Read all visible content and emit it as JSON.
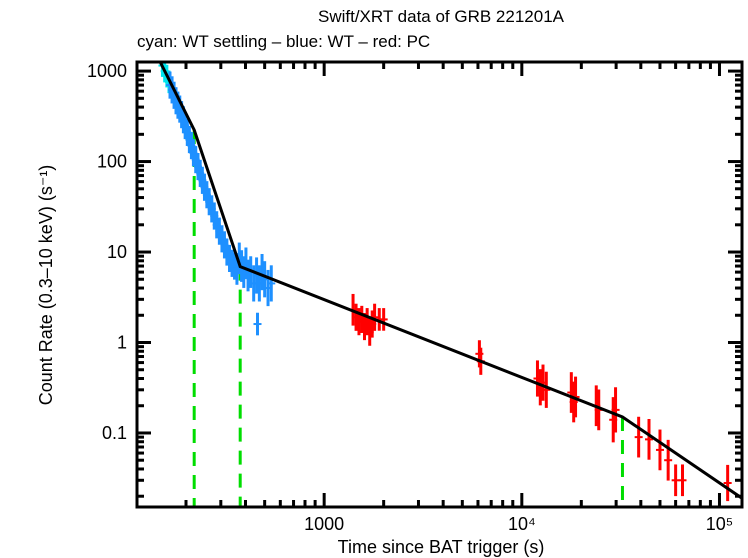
{
  "chart_data": {
    "type": "scatter",
    "title": "Swift/XRT data of GRB 221201A",
    "subtitle": "cyan: WT settling – blue: WT – red: PC",
    "xlabel": "Time since BAT trigger (s)",
    "ylabel": "Count Rate (0.3–10 keV) (s⁻¹)",
    "xscale": "log",
    "yscale": "log",
    "xlim": [
      113,
      130000
    ],
    "ylim": [
      0.0152,
      1260
    ],
    "xticks": [
      {
        "value": 1000,
        "label": "1000"
      },
      {
        "value": 10000,
        "label": "10⁴"
      },
      {
        "value": 100000,
        "label": "10⁵"
      }
    ],
    "yticks": [
      {
        "value": 0.1,
        "label": "0.1"
      },
      {
        "value": 1,
        "label": "1"
      },
      {
        "value": 10,
        "label": "10"
      },
      {
        "value": 100,
        "label": "100"
      },
      {
        "value": 1000,
        "label": "1000"
      }
    ],
    "colors": {
      "wt_settling": "#00e5ee",
      "wt": "#1e90ff",
      "pc": "#ff0000",
      "model": "#000000",
      "breaks": "#00dd00"
    },
    "series": [
      {
        "name": "WT settling",
        "color": "#00e5ee",
        "points": [
          [
            152,
            1150,
            0.25
          ],
          [
            156,
            1000,
            0.25
          ],
          [
            160,
            880,
            0.25
          ],
          [
            164,
            760,
            0.25
          ]
        ]
      },
      {
        "name": "WT",
        "color": "#1e90ff",
        "points": [
          [
            166,
            700,
            0.3
          ],
          [
            170,
            620,
            0.3
          ],
          [
            174,
            540,
            0.3
          ],
          [
            178,
            470,
            0.3
          ],
          [
            182,
            420,
            0.3
          ],
          [
            186,
            380,
            0.3
          ],
          [
            190,
            330,
            0.3
          ],
          [
            194,
            290,
            0.3
          ],
          [
            198,
            250,
            0.3
          ],
          [
            203,
            210,
            0.3
          ],
          [
            208,
            175,
            0.3
          ],
          [
            213,
            150,
            0.3
          ],
          [
            218,
            125,
            0.3
          ],
          [
            224,
            105,
            0.3
          ],
          [
            230,
            88,
            0.3
          ],
          [
            236,
            74,
            0.3
          ],
          [
            242,
            62,
            0.3
          ],
          [
            248,
            52,
            0.3
          ],
          [
            255,
            43,
            0.3
          ],
          [
            262,
            36,
            0.3
          ],
          [
            270,
            30,
            0.3
          ],
          [
            278,
            25,
            0.3
          ],
          [
            286,
            20,
            0.3
          ],
          [
            295,
            17,
            0.3
          ],
          [
            304,
            14,
            0.3
          ],
          [
            313,
            12,
            0.3
          ],
          [
            322,
            10,
            0.3
          ],
          [
            332,
            8.5,
            0.3
          ],
          [
            342,
            7.5,
            0.3
          ],
          [
            352,
            7.0,
            0.3
          ],
          [
            362,
            6.5,
            0.35
          ],
          [
            372,
            8.5,
            0.35
          ],
          [
            382,
            7.0,
            0.35
          ],
          [
            392,
            6.0,
            0.35
          ],
          [
            402,
            7.5,
            0.35
          ],
          [
            412,
            5.5,
            0.35
          ],
          [
            425,
            6.0,
            0.35
          ],
          [
            440,
            4.5,
            0.4
          ],
          [
            455,
            5.5,
            0.4
          ],
          [
            470,
            4.5,
            0.4
          ],
          [
            485,
            6.0,
            0.4
          ],
          [
            500,
            5.0,
            0.4
          ],
          [
            520,
            4.0,
            0.4
          ],
          [
            540,
            4.5,
            0.4
          ],
          [
            460,
            1.6,
            0.25
          ]
        ]
      },
      {
        "name": "PC",
        "color": "#ff0000",
        "points": [
          [
            1400,
            2.3,
            0.35
          ],
          [
            1450,
            1.9,
            0.3
          ],
          [
            1500,
            1.7,
            0.3
          ],
          [
            1550,
            1.8,
            0.3
          ],
          [
            1600,
            1.5,
            0.3
          ],
          [
            1650,
            1.7,
            0.3
          ],
          [
            1700,
            1.3,
            0.3
          ],
          [
            1750,
            1.6,
            0.3
          ],
          [
            1800,
            1.9,
            0.3
          ],
          [
            1900,
            1.8,
            0.25
          ],
          [
            2000,
            1.8,
            0.25
          ],
          [
            6100,
            0.75,
            0.3
          ],
          [
            6200,
            0.62,
            0.3
          ],
          [
            12000,
            0.4,
            0.4
          ],
          [
            12400,
            0.32,
            0.4
          ],
          [
            12800,
            0.36,
            0.4
          ],
          [
            13300,
            0.3,
            0.4
          ],
          [
            17800,
            0.28,
            0.45
          ],
          [
            18300,
            0.22,
            0.45
          ],
          [
            18700,
            0.25,
            0.45
          ],
          [
            23800,
            0.2,
            0.45
          ],
          [
            24500,
            0.18,
            0.45
          ],
          [
            29000,
            0.14,
            0.5
          ],
          [
            29800,
            0.18,
            0.5
          ],
          [
            39000,
            0.09,
            0.45
          ],
          [
            44000,
            0.085,
            0.45
          ],
          [
            50000,
            0.065,
            0.45
          ],
          [
            55000,
            0.05,
            0.45
          ],
          [
            60000,
            0.03,
            0.35
          ],
          [
            65000,
            0.03,
            0.35
          ],
          [
            110000,
            0.028,
            0.4
          ]
        ]
      }
    ],
    "model": {
      "name": "broken power-law fit",
      "color": "#000000",
      "points": [
        [
          148,
          1260
        ],
        [
          220,
          223
        ],
        [
          376,
          6.9
        ],
        [
          32300,
          0.15
        ],
        [
          130000,
          0.019
        ]
      ]
    },
    "breaks": [
      220,
      376,
      32300
    ],
    "grid": false,
    "legend": "none"
  }
}
